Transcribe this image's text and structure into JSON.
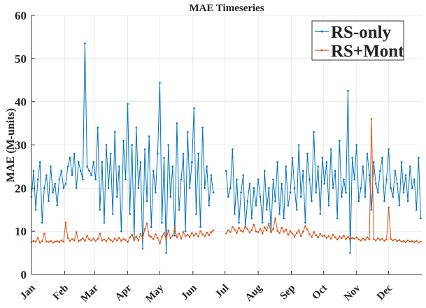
{
  "chart_data": {
    "type": "line",
    "title": "MAE Timeseries",
    "xlabel": "",
    "ylabel": "MAE (M-units)",
    "ylim": [
      0,
      60
    ],
    "yticks": [
      0,
      10,
      20,
      30,
      40,
      50,
      60
    ],
    "x_unit": "day of year",
    "xlim": [
      0,
      365
    ],
    "x_start_day": 0,
    "x_step_days": 2,
    "xtick_labels": [
      "Jan",
      "Feb",
      "Mar",
      "Apr",
      "May",
      "Jun",
      "Jul",
      "Aug",
      "Sep",
      "Oct",
      "Nov",
      "Dec"
    ],
    "xtick_days": [
      0,
      31,
      59,
      90,
      120,
      151,
      181,
      212,
      243,
      273,
      304,
      334
    ],
    "grid": true,
    "legend_position": "top-right",
    "series": [
      {
        "name": "RS-only",
        "color": "#0072BD",
        "values": [
          18,
          24,
          15,
          22,
          26,
          12,
          20,
          23,
          17,
          25,
          19,
          21,
          16,
          22,
          24,
          20,
          21,
          25,
          27,
          23,
          28,
          20,
          26,
          24,
          22,
          53.5,
          25,
          24,
          23,
          26,
          22,
          34,
          15,
          26,
          12,
          30,
          20,
          28,
          14,
          33,
          18,
          25,
          10,
          31,
          22,
          39.5,
          14,
          30,
          8,
          34,
          20,
          26,
          6,
          29,
          17,
          32,
          11,
          24,
          19,
          28,
          44.4,
          12,
          27,
          5,
          30,
          18,
          25,
          9,
          35,
          15,
          22,
          28,
          10,
          33,
          20,
          26,
          38.5,
          14,
          28,
          11,
          34,
          20,
          25,
          16,
          23,
          19,
          null,
          null,
          null,
          null,
          null,
          24,
          18,
          20,
          29,
          14,
          22,
          12,
          19,
          23,
          11,
          17,
          21,
          13,
          20,
          16,
          22,
          18,
          12,
          24,
          15,
          20,
          10,
          22,
          17,
          26,
          14,
          21,
          13,
          25,
          16,
          19,
          27,
          20,
          15,
          30,
          18,
          24,
          12,
          28,
          22,
          17,
          33,
          19,
          25,
          14,
          27,
          21,
          26,
          16,
          29,
          20,
          24,
          13,
          31,
          18,
          22,
          19,
          42.5,
          5,
          27,
          22,
          30,
          17,
          20,
          25,
          18,
          28,
          23,
          15,
          26,
          21,
          19,
          24,
          27,
          17,
          22,
          29,
          20,
          18,
          24,
          21,
          16,
          26,
          19,
          23,
          17,
          25,
          20,
          22,
          15,
          27,
          13
        ]
      },
      {
        "name": "RS+Mont",
        "color": "#D95319",
        "values": [
          7.5,
          7.8,
          7.6,
          8.5,
          7.4,
          7.7,
          9.5,
          7.6,
          7.5,
          7.8,
          7.4,
          7.6,
          7.7,
          7.5,
          7.9,
          7.6,
          12,
          8.5,
          7.8,
          8.2,
          7.9,
          9.8,
          7.7,
          8.0,
          8.4,
          7.8,
          9.0,
          8.1,
          7.9,
          8.3,
          7.8,
          8.2,
          9.5,
          7.9,
          8.1,
          7.7,
          8.4,
          8.0,
          7.6,
          8.3,
          7.9,
          8.5,
          7.8,
          8.2,
          8.0,
          7.5,
          8.6,
          9.2,
          8.0,
          8.8,
          7.9,
          9.4,
          8.3,
          10.5,
          11.8,
          9.0,
          8.7,
          8.2,
          9.3,
          8.5,
          7.2,
          8.8,
          9.6,
          8.1,
          10.2,
          8.4,
          9.0,
          10.8,
          8.6,
          9.5,
          8.3,
          9.8,
          8.9,
          9.2,
          8.7,
          9.6,
          9.0,
          9.5,
          8.8,
          10.0,
          9.3,
          8.9,
          9.7,
          9.1,
          9.8,
          10.2,
          null,
          null,
          null,
          null,
          null,
          9.5,
          10.2,
          9.8,
          11.0,
          10.4,
          9.6,
          10.8,
          10.1,
          9.9,
          11.2,
          10.5,
          9.7,
          10.3,
          11.5,
          10.0,
          9.8,
          10.6,
          9.5,
          10.9,
          10.2,
          11.8,
          9.8,
          10.5,
          13.0,
          10.1,
          9.6,
          10.8,
          9.9,
          10.4,
          9.2,
          10.0,
          9.5,
          8.8,
          9.6,
          10.2,
          8.9,
          9.9,
          11.2,
          10.4,
          9.3,
          8.7,
          9.8,
          9.1,
          8.6,
          9.4,
          8.9,
          9.0,
          8.5,
          8.9,
          8.3,
          9.2,
          8.6,
          8.1,
          8.8,
          8.4,
          9.0,
          8.2,
          8.7,
          8.0,
          8.5,
          8.3,
          8.6,
          8.1,
          7.9,
          8.3,
          8.0,
          8.6,
          8.1,
          36,
          8.2,
          7.9,
          8.4,
          8.0,
          8.3,
          7.8,
          8.1,
          15.5,
          8.2,
          7.9,
          8.1,
          7.7,
          8.0,
          7.6,
          7.8,
          7.5,
          7.9,
          7.6,
          7.7,
          7.5,
          7.8,
          7.4,
          7.6
        ]
      }
    ]
  }
}
